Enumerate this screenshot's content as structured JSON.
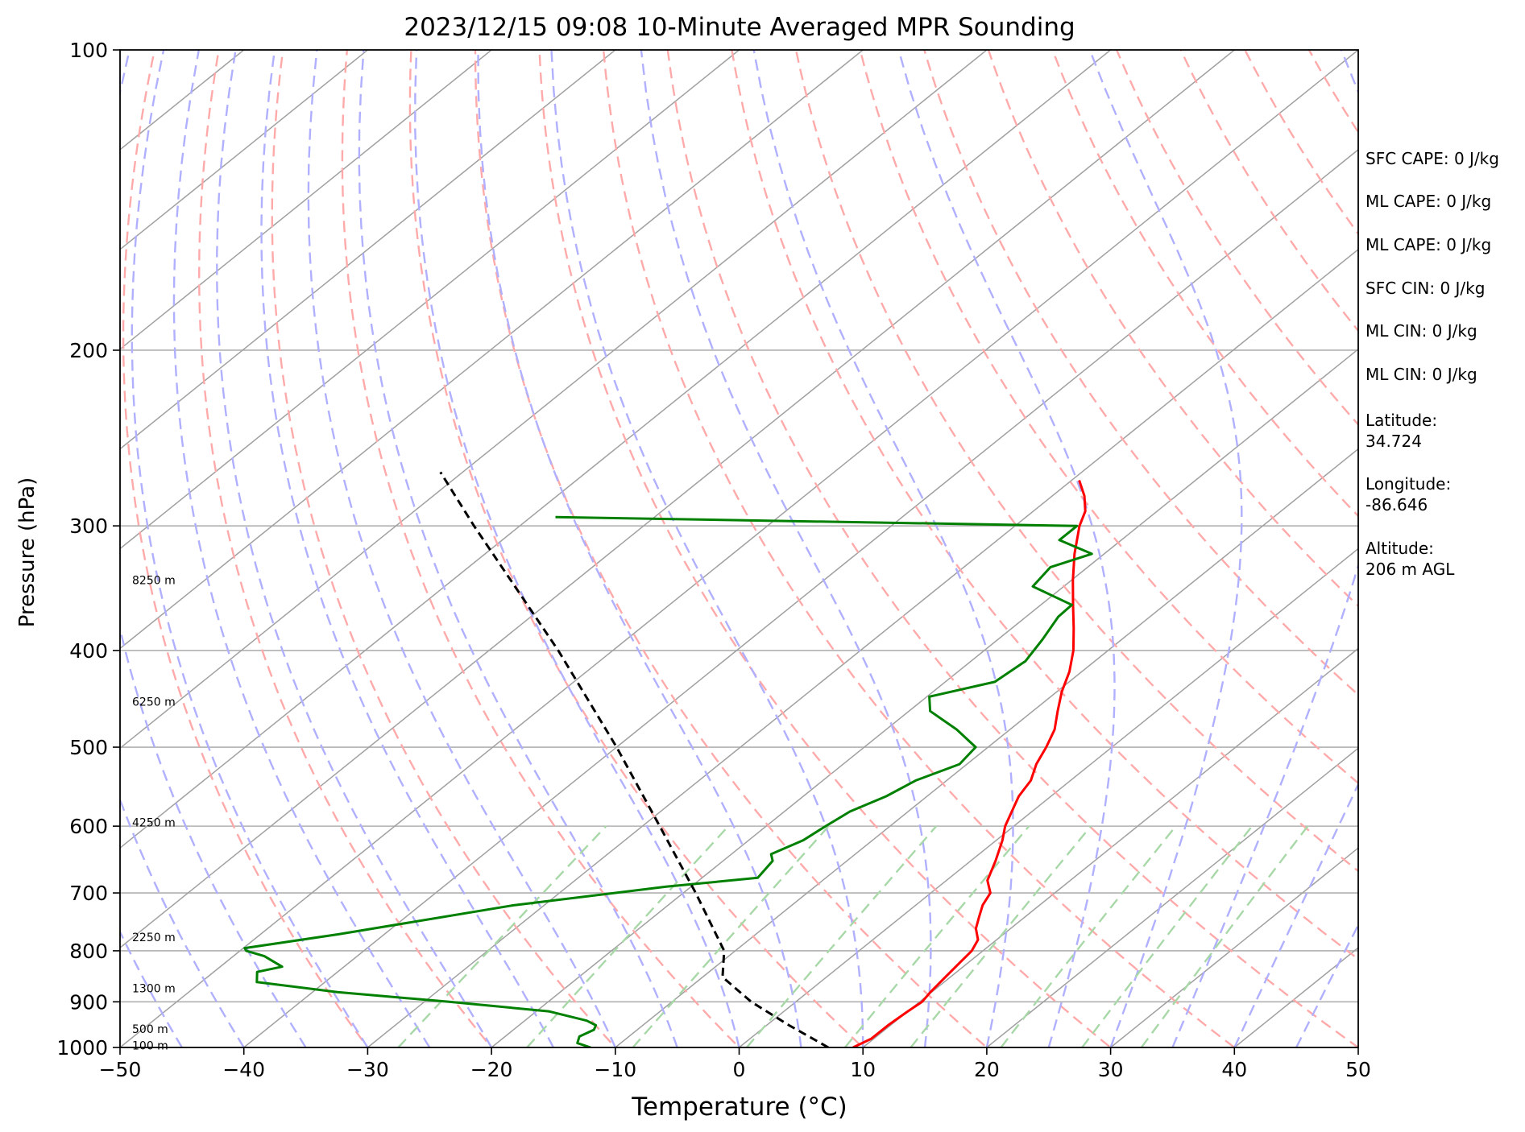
{
  "chart_data": {
    "type": "line",
    "subtype": "skew-t log-p sounding",
    "title": "2023/12/15 09:08 10-Minute Averaged MPR Sounding",
    "xlabel": "Temperature (°C)",
    "ylabel": "Pressure (hPa)",
    "xlim": [
      -50,
      50
    ],
    "ylim": [
      1000,
      100
    ],
    "y_scale": "log",
    "x_ticks": [
      -50,
      -40,
      -30,
      -20,
      -10,
      0,
      10,
      20,
      30,
      40,
      50
    ],
    "x_tick_labels": [
      "−50",
      "−40",
      "−30",
      "−20",
      "−10",
      "0",
      "10",
      "20",
      "30",
      "40",
      "50"
    ],
    "y_ticks": [
      100,
      200,
      300,
      400,
      500,
      600,
      700,
      800,
      900,
      1000
    ],
    "y_tick_labels": [
      "100",
      "200",
      "300",
      "400",
      "500",
      "600",
      "700",
      "800",
      "900",
      "1000"
    ],
    "grid": "horizontal at pressure ticks",
    "series": [
      {
        "color": "#ff0000",
        "style": "solid",
        "points": [
          [
            1000,
            9.2
          ],
          [
            980,
            9.8
          ],
          [
            950,
            9.8
          ],
          [
            920,
            10.0
          ],
          [
            900,
            10.2
          ],
          [
            880,
            9.9
          ],
          [
            850,
            9.6
          ],
          [
            820,
            9.3
          ],
          [
            800,
            9.1
          ],
          [
            780,
            8.5
          ],
          [
            760,
            7.2
          ],
          [
            740,
            6.3
          ],
          [
            720,
            5.4
          ],
          [
            700,
            4.8
          ],
          [
            680,
            3.3
          ],
          [
            650,
            2.0
          ],
          [
            620,
            0.5
          ],
          [
            600,
            -0.7
          ],
          [
            560,
            -2.6
          ],
          [
            540,
            -3.2
          ],
          [
            520,
            -4.4
          ],
          [
            500,
            -5.3
          ],
          [
            480,
            -6.4
          ],
          [
            460,
            -8.0
          ],
          [
            440,
            -9.6
          ],
          [
            420,
            -11.0
          ],
          [
            400,
            -12.8
          ],
          [
            380,
            -15.0
          ],
          [
            360,
            -17.4
          ],
          [
            340,
            -19.9
          ],
          [
            320,
            -22.4
          ],
          [
            300,
            -24.8
          ],
          [
            290,
            -25.8
          ],
          [
            280,
            -27.4
          ],
          [
            270,
            -29.4
          ]
        ]
      },
      {
        "color": "#008000",
        "style": "solid",
        "points": [
          [
            1000,
            -12.0
          ],
          [
            990,
            -13.5
          ],
          [
            975,
            -14.0
          ],
          [
            960,
            -13.5
          ],
          [
            950,
            -13.8
          ],
          [
            940,
            -15.0
          ],
          [
            920,
            -19.0
          ],
          [
            900,
            -28.0
          ],
          [
            880,
            -38.0
          ],
          [
            860,
            -45.5
          ],
          [
            840,
            -46.5
          ],
          [
            830,
            -45.0
          ],
          [
            810,
            -47.5
          ],
          [
            800,
            -49.5
          ],
          [
            795,
            -49.9
          ],
          [
            770,
            -43.7
          ],
          [
            720,
            -32.4
          ],
          [
            690,
            -22.0
          ],
          [
            676,
            -15.5
          ],
          [
            650,
            -16.0
          ],
          [
            640,
            -16.8
          ],
          [
            620,
            -15.6
          ],
          [
            600,
            -15.2
          ],
          [
            580,
            -14.7
          ],
          [
            560,
            -13.3
          ],
          [
            540,
            -12.5
          ],
          [
            520,
            -10.6
          ],
          [
            500,
            -11.0
          ],
          [
            480,
            -14.3
          ],
          [
            460,
            -18.3
          ],
          [
            445,
            -19.8
          ],
          [
            430,
            -16.0
          ],
          [
            410,
            -15.6
          ],
          [
            390,
            -16.4
          ],
          [
            370,
            -17.4
          ],
          [
            360,
            -17.5
          ],
          [
            345,
            -22.5
          ],
          [
            330,
            -23.0
          ],
          [
            320,
            -21.0
          ],
          [
            310,
            -25.0
          ],
          [
            300,
            -25.0
          ],
          [
            294,
            -68.0
          ]
        ]
      },
      {
        "color": "#000000",
        "style": "dashed",
        "points": [
          [
            1000,
            7.2
          ],
          [
            950,
            1.8
          ],
          [
            900,
            -3.6
          ],
          [
            850,
            -8.4
          ],
          [
            800,
            -10.9
          ],
          [
            700,
            -19.0
          ],
          [
            600,
            -28.6
          ],
          [
            500,
            -40.0
          ],
          [
            400,
            -54.4
          ],
          [
            300,
            -73.7
          ],
          [
            265,
            -81.8
          ]
        ]
      }
    ],
    "height_labels": [
      {
        "text": "8250 m",
        "pressure": 340
      },
      {
        "text": "6250 m",
        "pressure": 450
      },
      {
        "text": "4250 m",
        "pressure": 595
      },
      {
        "text": "2250 m",
        "pressure": 775
      },
      {
        "text": "1300 m",
        "pressure": 872
      },
      {
        "text": "500 m",
        "pressure": 958
      },
      {
        "text": "100 m",
        "pressure": 995
      }
    ],
    "background_lines": [
      {
        "kind": "isotherm",
        "color": "#a0a0a0",
        "style": "solid"
      },
      {
        "kind": "dry adiabat",
        "color": "#ffaaaa",
        "style": "dashed"
      },
      {
        "kind": "moist adiabat",
        "color": "#b0b0ff",
        "style": "dashed"
      },
      {
        "kind": "mixing ratio",
        "color": "#a8d8a8",
        "style": "dashed"
      }
    ]
  },
  "sidebar": {
    "stats": [
      "SFC CAPE: 0 J/kg",
      "ML CAPE: 0 J/kg",
      "ML CAPE: 0 J/kg",
      "SFC CIN: 0 J/kg",
      "ML CIN: 0 J/kg",
      "ML CIN: 0 J/kg"
    ],
    "latitude_label": "Latitude:",
    "latitude_value": "34.724",
    "longitude_label": "Longitude:",
    "longitude_value": "-86.646",
    "altitude_label": "Altitude:",
    "altitude_value": "206 m AGL"
  }
}
